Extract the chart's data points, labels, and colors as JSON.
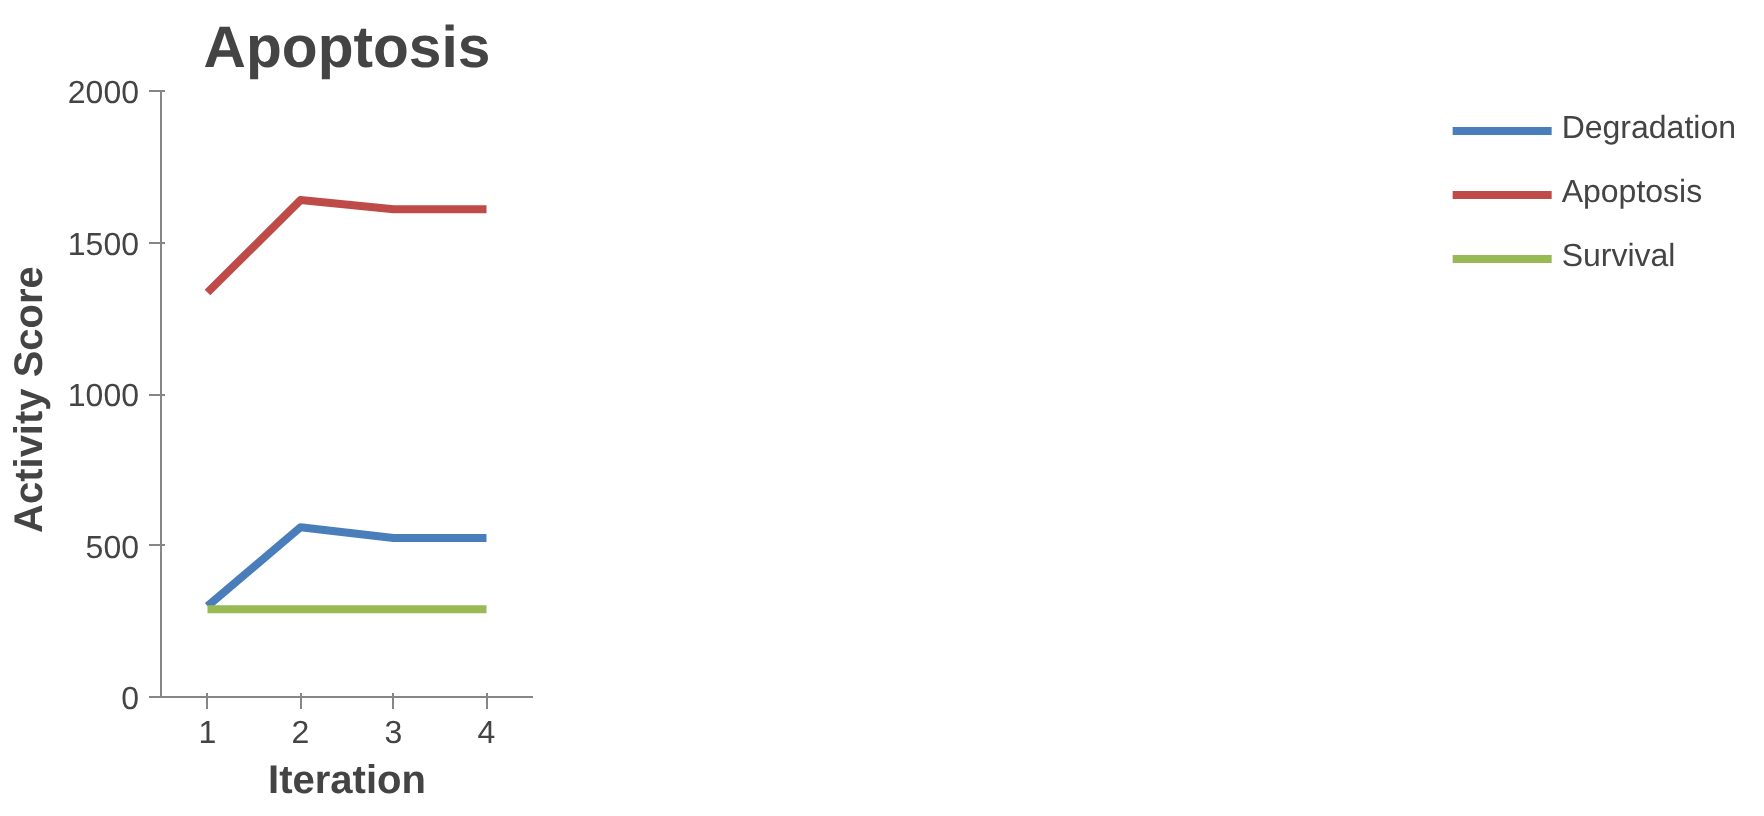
{
  "chart_data": {
    "type": "line",
    "title": "Apoptosis",
    "xlabel": "Iteration",
    "ylabel": "Activity  Score",
    "categories": [
      "1",
      "2",
      "3",
      "4"
    ],
    "series": [
      {
        "name": "Degradation",
        "color": "#4a7ebb",
        "values": [
          300,
          560,
          525,
          525
        ]
      },
      {
        "name": "Apoptosis",
        "color": "#be4b48",
        "values": [
          1335,
          1640,
          1610,
          1610
        ]
      },
      {
        "name": "Survival",
        "color": "#98b954",
        "values": [
          290,
          290,
          290,
          290
        ]
      }
    ],
    "ylim": [
      0,
      2000
    ],
    "yticks": [
      0,
      500,
      1000,
      1500,
      2000
    ],
    "grid": false,
    "legend": "right",
    "marker": "none",
    "line_style": "solid"
  }
}
